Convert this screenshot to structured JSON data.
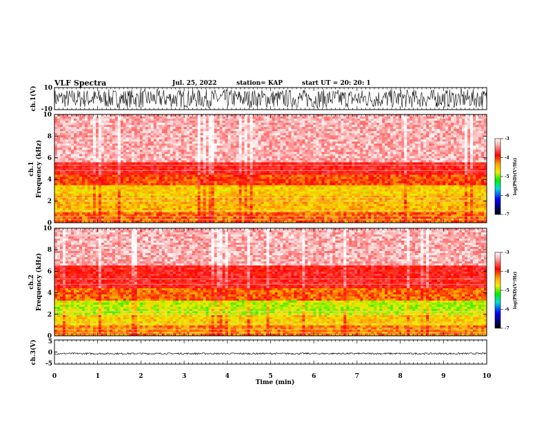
{
  "header": {
    "title": "VLF Spectra",
    "date": "Jul. 25, 2022",
    "station": "station= KAP",
    "start": "start UT =  20: 20: 1"
  },
  "chart_data": {
    "type": "heatmap",
    "x": {
      "label": "Time (min)",
      "range": [
        0,
        10
      ],
      "ticks": [
        "0",
        "1",
        "2",
        "3",
        "4",
        "5",
        "6",
        "7",
        "8",
        "9",
        "10"
      ]
    },
    "panels": [
      {
        "id": "ch1_waveform",
        "kind": "line",
        "ylabel": "ch.1(V)",
        "ylim": [
          -10,
          10
        ],
        "yticks": [
          "10",
          "-10"
        ],
        "oscillates_between": [
          -10,
          10
        ]
      },
      {
        "id": "ch1_spectrogram",
        "kind": "heatmap",
        "ylabel_lines": [
          "ch.1",
          "Frequency (kHz)"
        ],
        "ylim": [
          0,
          10
        ],
        "yticks": [
          "0",
          "2",
          "4",
          "6",
          "8",
          "10"
        ],
        "colorbar": {
          "label": "log(PSD)(V²/Hz)",
          "range": [
            -7,
            -3
          ],
          "ticks": [
            "-3",
            "-4",
            "-5",
            "-6",
            "-7"
          ]
        },
        "bands": [
          {
            "from": 0,
            "to": 1.0,
            "level": -4.3
          },
          {
            "from": 1.0,
            "to": 2.5,
            "level": -4.6
          },
          {
            "from": 2.5,
            "to": 3.5,
            "level": -4.7
          },
          {
            "from": 3.5,
            "to": 4.5,
            "level": -4.2
          },
          {
            "from": 4.5,
            "to": 5.6,
            "level": -3.9
          },
          {
            "from": 5.6,
            "to": 10,
            "level": -3.3
          }
        ]
      },
      {
        "id": "ch2_spectrogram",
        "kind": "heatmap",
        "ylabel_lines": [
          "ch.2",
          "Frequency (kHz)"
        ],
        "ylim": [
          0,
          10
        ],
        "yticks": [
          "0",
          "2",
          "4",
          "6",
          "8",
          "10"
        ],
        "colorbar": {
          "label": "log(PSD)(V²/Hz)",
          "range": [
            -7,
            -3
          ],
          "ticks": [
            "-3",
            "-4",
            "-5",
            "-6",
            "-7"
          ]
        },
        "bands": [
          {
            "from": 0,
            "to": 1.0,
            "level": -4.4
          },
          {
            "from": 1.0,
            "to": 2.0,
            "level": -4.7
          },
          {
            "from": 2.0,
            "to": 3.3,
            "level": -5.0
          },
          {
            "from": 3.3,
            "to": 4.5,
            "level": -4.3
          },
          {
            "from": 4.5,
            "to": 6.5,
            "level": -3.9
          },
          {
            "from": 6.5,
            "to": 10,
            "level": -3.3
          }
        ]
      },
      {
        "id": "ch3_waveform",
        "kind": "line",
        "ylabel": "ch.3(V)",
        "ylim": [
          -5,
          5
        ],
        "yticks": [
          "5",
          "0",
          "-5"
        ],
        "oscillates_between": [
          -1,
          -0.3
        ]
      }
    ]
  }
}
